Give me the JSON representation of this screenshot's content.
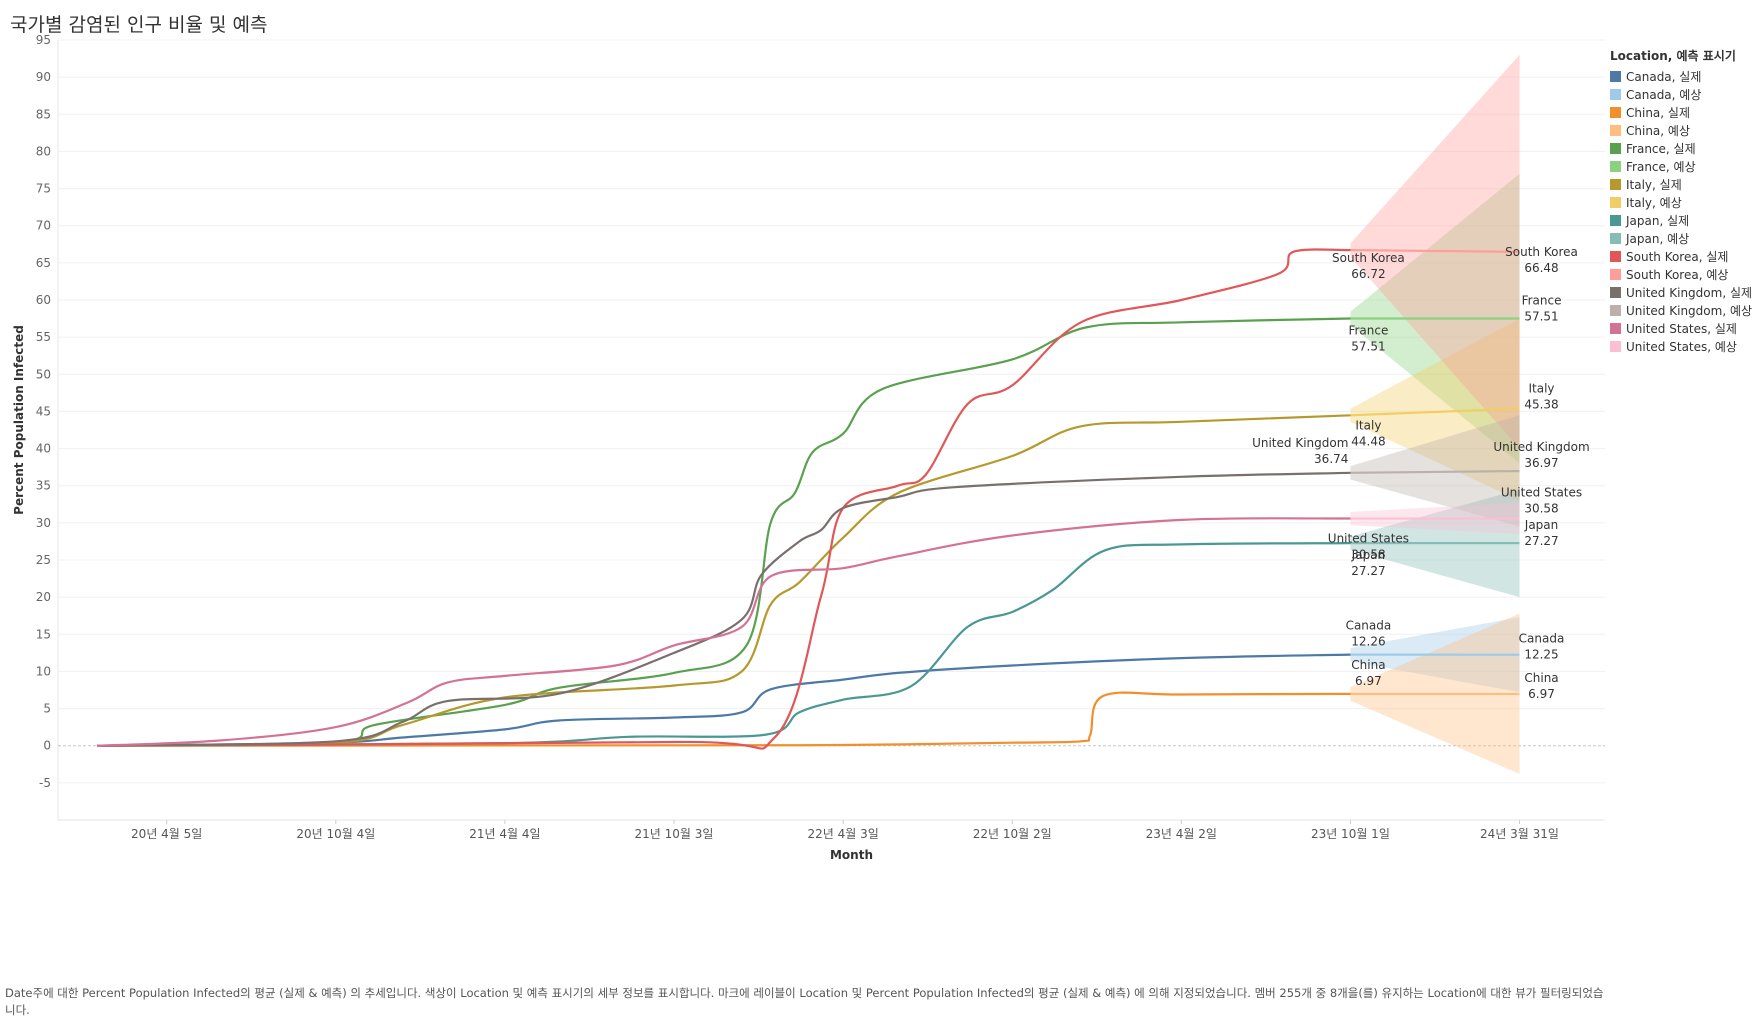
{
  "chart_data": {
    "type": "line",
    "title": "국가별 감염된 인구 비율 및 예측",
    "xlabel": "Month",
    "ylabel": "Percent Population Infected",
    "ylim": [
      -10,
      95
    ],
    "yticks": [
      -5,
      0,
      5,
      10,
      15,
      20,
      25,
      30,
      35,
      40,
      45,
      50,
      55,
      60,
      65,
      70,
      75,
      80,
      85,
      90,
      95
    ],
    "xlim": [
      "2019-12-10",
      "2024-07-01"
    ],
    "xticks": [
      {
        "date": "2020-04-05",
        "label": "20년 4월 5일"
      },
      {
        "date": "2020-10-04",
        "label": "20년 10월 4일"
      },
      {
        "date": "2021-04-04",
        "label": "21년 4월 4일"
      },
      {
        "date": "2021-10-03",
        "label": "21년 10월 3일"
      },
      {
        "date": "2022-04-03",
        "label": "22년 4월 3일"
      },
      {
        "date": "2022-10-02",
        "label": "22년 10월 2일"
      },
      {
        "date": "2023-04-02",
        "label": "23년 4월 2일"
      },
      {
        "date": "2023-10-01",
        "label": "23년 10월 1일"
      },
      {
        "date": "2024-03-31",
        "label": "24년 3월 31일"
      }
    ],
    "grid": true,
    "legend_position": "right",
    "legend_title": "Location, 예측 표시기",
    "forecast_start": "2023-10-01",
    "forecast_end": "2024-03-31",
    "series": [
      {
        "name": "Canada",
        "actual_label": "Canada, 실제",
        "forecast_label": "Canada, 예상",
        "color": "#4e79a7",
        "forecast_color": "#a0cbe8",
        "actual": [
          [
            "2020-01-22",
            0
          ],
          [
            "2020-04-05",
            0.1
          ],
          [
            "2020-10-04",
            0.4
          ],
          [
            "2020-12-15",
            1.1
          ],
          [
            "2021-04-04",
            2.2
          ],
          [
            "2021-06-01",
            3.4
          ],
          [
            "2021-10-03",
            3.8
          ],
          [
            "2021-12-15",
            4.5
          ],
          [
            "2022-01-15",
            7.6
          ],
          [
            "2022-04-03",
            8.9
          ],
          [
            "2022-06-01",
            9.8
          ],
          [
            "2022-10-02",
            10.8
          ],
          [
            "2023-04-02",
            11.8
          ],
          [
            "2023-10-01",
            12.26
          ]
        ],
        "forecast_end_value": 12.25,
        "band": [
          [
            12.26,
            12.26
          ],
          [
            7.2,
            17.3
          ]
        ],
        "labels": {
          "start": [
            "Canada",
            "12.26"
          ],
          "end": [
            "Canada",
            "12.25"
          ]
        }
      },
      {
        "name": "China",
        "actual_label": "China, 실제",
        "forecast_label": "China, 예상",
        "color": "#f28e2b",
        "forecast_color": "#ffbe7d",
        "actual": [
          [
            "2020-01-22",
            0
          ],
          [
            "2021-10-03",
            0.05
          ],
          [
            "2022-04-03",
            0.1
          ],
          [
            "2022-10-02",
            0.4
          ],
          [
            "2022-12-15",
            0.6
          ],
          [
            "2022-12-25",
            1.5
          ],
          [
            "2023-01-08",
            6.7
          ],
          [
            "2023-04-02",
            6.9
          ],
          [
            "2023-10-01",
            6.97
          ]
        ],
        "forecast_end_value": 6.97,
        "band": [
          [
            6.97,
            6.97
          ],
          [
            -3.8,
            17.8
          ]
        ],
        "labels": {
          "start": [
            "China",
            "6.97"
          ],
          "end": [
            "China",
            "6.97"
          ]
        }
      },
      {
        "name": "France",
        "actual_label": "France, 실제",
        "forecast_label": "France, 예상",
        "color": "#59a14f",
        "forecast_color": "#8cd17d",
        "actual": [
          [
            "2020-01-22",
            0
          ],
          [
            "2020-10-04",
            0.5
          ],
          [
            "2020-11-15",
            2.8
          ],
          [
            "2021-04-04",
            5.5
          ],
          [
            "2021-06-01",
            7.8
          ],
          [
            "2021-10-03",
            9.8
          ],
          [
            "2021-12-20",
            13.5
          ],
          [
            "2022-01-15",
            30
          ],
          [
            "2022-02-10",
            34
          ],
          [
            "2022-03-01",
            39.5
          ],
          [
            "2022-04-03",
            42
          ],
          [
            "2022-05-15",
            48
          ],
          [
            "2022-10-02",
            52
          ],
          [
            "2022-12-20",
            56.3
          ],
          [
            "2023-04-02",
            57
          ],
          [
            "2023-10-01",
            57.51
          ]
        ],
        "forecast_end_value": 57.51,
        "band": [
          [
            57.51,
            57.51
          ],
          [
            38,
            77
          ]
        ],
        "labels": {
          "start": [
            "France",
            "57.51"
          ],
          "end": [
            "France",
            "57.51"
          ]
        }
      },
      {
        "name": "Italy",
        "actual_label": "Italy, 실제",
        "forecast_label": "Italy, 예상",
        "color": "#b6992d",
        "forecast_color": "#f1ce63",
        "actual": [
          [
            "2020-01-22",
            0
          ],
          [
            "2020-10-04",
            0.4
          ],
          [
            "2020-12-15",
            2.8
          ],
          [
            "2021-04-04",
            6.5
          ],
          [
            "2021-10-03",
            8.1
          ],
          [
            "2021-12-15",
            10
          ],
          [
            "2022-01-15",
            19
          ],
          [
            "2022-02-15",
            22
          ],
          [
            "2022-04-03",
            28
          ],
          [
            "2022-06-01",
            34
          ],
          [
            "2022-10-02",
            39
          ],
          [
            "2022-12-15",
            43
          ],
          [
            "2023-04-02",
            43.6
          ],
          [
            "2023-10-01",
            44.48
          ]
        ],
        "forecast_end_value": 45.38,
        "band": [
          [
            44.48,
            44.48
          ],
          [
            33,
            57.5
          ]
        ],
        "labels": {
          "start": [
            "Italy",
            "44.48"
          ],
          "end": [
            "Italy",
            "45.38"
          ]
        }
      },
      {
        "name": "Japan",
        "actual_label": "Japan, 실제",
        "forecast_label": "Japan, 예상",
        "color": "#499894",
        "forecast_color": "#86bcb6",
        "actual": [
          [
            "2020-01-22",
            0
          ],
          [
            "2021-04-04",
            0.35
          ],
          [
            "2021-08-15",
            1.2
          ],
          [
            "2022-01-10",
            1.5
          ],
          [
            "2022-02-15",
            4.5
          ],
          [
            "2022-04-03",
            6.2
          ],
          [
            "2022-06-15",
            8
          ],
          [
            "2022-08-15",
            16
          ],
          [
            "2022-10-02",
            18
          ],
          [
            "2022-11-15",
            21
          ],
          [
            "2023-01-10",
            26.3
          ],
          [
            "2023-04-02",
            27.1
          ],
          [
            "2023-10-01",
            27.27
          ]
        ],
        "forecast_end_value": 27.27,
        "band": [
          [
            27.27,
            27.27
          ],
          [
            20,
            34.5
          ]
        ],
        "labels": {
          "start": [
            "Japan",
            "27.27"
          ],
          "end": [
            "Japan",
            "27.27"
          ]
        }
      },
      {
        "name": "South Korea",
        "actual_label": "South Korea, 실제",
        "forecast_label": "South Korea, 예상",
        "color": "#e15759",
        "forecast_color": "#ff9d9a",
        "actual": [
          [
            "2020-01-22",
            0
          ],
          [
            "2021-10-03",
            0.5
          ],
          [
            "2022-01-20",
            1.2
          ],
          [
            "2022-03-10",
            20
          ],
          [
            "2022-04-03",
            32
          ],
          [
            "2022-06-01",
            35
          ],
          [
            "2022-07-01",
            36.5
          ],
          [
            "2022-08-15",
            46
          ],
          [
            "2022-10-02",
            48.5
          ],
          [
            "2022-12-15",
            57
          ],
          [
            "2023-04-02",
            60
          ],
          [
            "2023-07-15",
            63.5
          ],
          [
            "2023-08-01",
            66.5
          ],
          [
            "2023-10-01",
            66.72
          ]
        ],
        "forecast_end_value": 66.48,
        "band": [
          [
            66.72,
            66.72
          ],
          [
            40,
            93
          ]
        ],
        "labels": {
          "start": [
            "South Korea",
            "66.72"
          ],
          "end": [
            "South Korea",
            "66.48"
          ]
        }
      },
      {
        "name": "United Kingdom",
        "actual_label": "United Kingdom, 실제",
        "forecast_label": "United Kingdom, 예상",
        "color": "#79706e",
        "forecast_color": "#bab0ac",
        "actual": [
          [
            "2020-01-22",
            0
          ],
          [
            "2020-10-04",
            0.6
          ],
          [
            "2020-12-15",
            3.2
          ],
          [
            "2021-02-01",
            6
          ],
          [
            "2021-06-01",
            7
          ],
          [
            "2021-10-03",
            12.5
          ],
          [
            "2021-12-15",
            17
          ],
          [
            "2022-01-05",
            23
          ],
          [
            "2022-02-15",
            27.5
          ],
          [
            "2022-03-10",
            29
          ],
          [
            "2022-04-03",
            32
          ],
          [
            "2022-06-01",
            33.5
          ],
          [
            "2022-08-01",
            34.8
          ],
          [
            "2023-04-02",
            36.2
          ],
          [
            "2023-10-01",
            36.74
          ]
        ],
        "forecast_end_value": 36.97,
        "band": [
          [
            36.74,
            36.74
          ],
          [
            29.5,
            44.5
          ]
        ],
        "labels": {
          "start": [
            "United Kingdom",
            "36.74"
          ],
          "end": [
            "United Kingdom",
            "36.97"
          ]
        }
      },
      {
        "name": "United States",
        "actual_label": "United States, 실제",
        "forecast_label": "United States, 예상",
        "color": "#d37295",
        "forecast_color": "#fabfd2",
        "actual": [
          [
            "2020-01-22",
            0
          ],
          [
            "2020-06-01",
            0.7
          ],
          [
            "2020-10-04",
            2.5
          ],
          [
            "2020-12-20",
            5.8
          ],
          [
            "2021-02-01",
            8.5
          ],
          [
            "2021-04-04",
            9.4
          ],
          [
            "2021-08-01",
            10.8
          ],
          [
            "2021-10-03",
            13.5
          ],
          [
            "2021-12-15",
            16
          ],
          [
            "2022-01-15",
            22.8
          ],
          [
            "2022-04-03",
            23.9
          ],
          [
            "2022-06-01",
            25.5
          ],
          [
            "2022-10-02",
            28.3
          ],
          [
            "2023-04-02",
            30.4
          ],
          [
            "2023-10-01",
            30.58
          ]
        ],
        "forecast_end_value": 30.58,
        "band": [
          [
            30.58,
            30.58
          ],
          [
            28.5,
            32.7
          ]
        ],
        "labels": {
          "start": [
            "United States",
            "30.58"
          ],
          "end": [
            "United States",
            "30.58"
          ]
        }
      }
    ]
  },
  "caption": "Date주에 대한 Percent Population Infected의 평균 (실제 & 예측) 의 추세입니다. 색상이 Location 및 예측 표시기의 세부 정보를 표시합니다. 마크에 레이블이 Location 및 Percent Population Infected의 평균 (실제 & 예측) 에 의해 지정되었습니다. 멤버 255개 중 8개을(를) 유지하는 Location에 대한 뷰가 필터링되었습니다."
}
